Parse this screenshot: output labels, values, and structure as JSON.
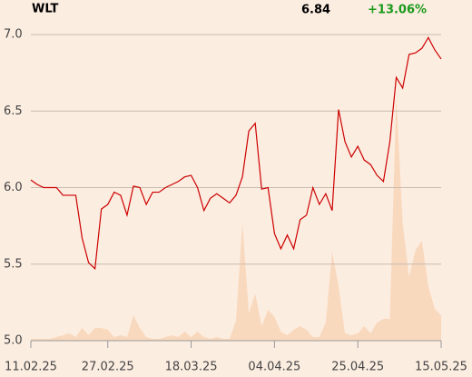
{
  "chart_data": {
    "type": "line",
    "title": "WLT",
    "price": "6.84",
    "change": "+13.06%",
    "change_color": "#1a9a1a",
    "categories": [
      "11.02.25",
      null,
      null,
      null,
      null,
      null,
      null,
      null,
      null,
      null,
      null,
      null,
      "27.02.25",
      null,
      null,
      null,
      null,
      null,
      null,
      null,
      null,
      null,
      null,
      null,
      null,
      "18.03.25",
      null,
      null,
      null,
      null,
      null,
      null,
      null,
      null,
      null,
      null,
      null,
      null,
      "04.04.25",
      null,
      null,
      null,
      null,
      null,
      null,
      null,
      null,
      null,
      null,
      null,
      null,
      "25.04.25",
      null,
      null,
      null,
      null,
      null,
      null,
      null,
      null,
      null,
      null,
      null,
      null,
      "15.05.25"
    ],
    "series": [
      {
        "type": "line",
        "color": "#cc0000",
        "values": [
          6.05,
          6.02,
          6.0,
          6.0,
          6.0,
          5.95,
          5.95,
          5.95,
          5.67,
          5.51,
          5.47,
          5.86,
          5.89,
          5.97,
          5.95,
          5.82,
          6.01,
          6.0,
          5.89,
          5.97,
          5.97,
          6.0,
          6.02,
          6.04,
          6.07,
          6.08,
          6.0,
          5.85,
          5.93,
          5.96,
          5.93,
          5.9,
          5.95,
          6.07,
          6.37,
          6.42,
          5.99,
          6.0,
          5.7,
          5.6,
          5.69,
          5.6,
          5.79,
          5.82,
          6.0,
          5.89,
          5.96,
          5.85,
          6.51,
          6.3,
          6.2,
          6.27,
          6.18,
          6.15,
          6.08,
          6.04,
          6.3,
          6.72,
          6.65,
          6.87,
          6.88,
          6.91,
          6.98,
          6.9,
          6.84
        ]
      },
      {
        "type": "area",
        "axis": "y2",
        "color": "#f9d9be",
        "values": [
          2,
          2,
          2,
          2,
          4,
          6,
          8,
          4,
          14,
          6,
          14,
          14,
          12,
          4,
          6,
          4,
          28,
          14,
          4,
          2,
          2,
          4,
          6,
          4,
          10,
          4,
          10,
          4,
          2,
          4,
          2,
          2,
          22,
          130,
          30,
          52,
          16,
          34,
          26,
          10,
          6,
          12,
          16,
          12,
          4,
          4,
          20,
          98,
          60,
          8,
          6,
          8,
          16,
          8,
          20,
          24,
          24,
          270,
          130,
          70,
          100,
          110,
          60,
          35,
          28
        ]
      }
    ],
    "ylim": [
      5.0,
      7.0
    ],
    "yticks": [
      {
        "value": 5.0,
        "label": "5.0"
      },
      {
        "value": 5.5,
        "label": "5.5"
      },
      {
        "value": 6.0,
        "label": "6.0"
      },
      {
        "value": 6.5,
        "label": "6.5"
      },
      {
        "value": 7.0,
        "label": "7.0"
      }
    ],
    "y2lim": [
      0,
      337
    ],
    "grid": true
  }
}
